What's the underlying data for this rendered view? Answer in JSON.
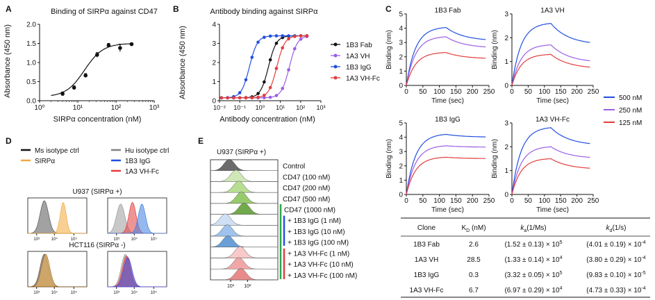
{
  "chart_data": [
    {
      "panel": "A",
      "type": "line",
      "title": "Binding of SIRPα against CD47",
      "xlabel": "SIRPα concentration (nM)",
      "ylabel": "Absorbance (450 nm)",
      "xscale": "log",
      "xlim": [
        1,
        1000
      ],
      "ylim": [
        0,
        2.0
      ],
      "yticks": [
        "0.0",
        "0.5",
        "1.0",
        "1.5",
        "2.0"
      ],
      "xticks": [
        "10⁰",
        "10¹",
        "10²",
        "10³"
      ],
      "points": {
        "x": [
          4,
          8,
          16,
          32,
          64,
          128,
          256
        ],
        "y": [
          0.18,
          0.34,
          0.66,
          1.2,
          1.45,
          1.38,
          1.48
        ],
        "err": [
          0.05,
          0.05,
          0.05,
          0.06,
          0.05,
          0.1,
          0.03
        ]
      },
      "fit": {
        "bottom": 0.1,
        "top": 1.5,
        "ec50": 15,
        "hill": 1.8
      }
    },
    {
      "panel": "B",
      "type": "line",
      "title": "Antibody binding against SIRPα",
      "xlabel": "Antibody concentration (nM)",
      "ylabel": "Absorbance (450 nm)",
      "xscale": "log",
      "xlim": [
        0.01,
        1000
      ],
      "ylim": [
        0,
        4
      ],
      "yticks": [
        "0",
        "1",
        "2",
        "3",
        "4"
      ],
      "xticks": [
        "10⁻²",
        "10⁻¹",
        "10⁰",
        "10¹",
        "10²",
        "10³"
      ],
      "series": [
        {
          "name": "1B3 Fab",
          "color": "#111111",
          "ec50": 2.6
        },
        {
          "name": "1A3 VH",
          "color": "#9b5de5",
          "ec50": 28
        },
        {
          "name": "1B3 IgG",
          "color": "#1f4fe0",
          "ec50": 0.3
        },
        {
          "name": "1A3 VH-Fc",
          "color": "#e23c3c",
          "ec50": 6.7
        }
      ],
      "x_points": [
        0.0125,
        0.025,
        0.05,
        0.1,
        0.2,
        0.4,
        0.8,
        1.6,
        3.2,
        6.4,
        12.8,
        25.6,
        51.2,
        102.4,
        204.8
      ],
      "bottom": 0.15,
      "top": 3.4
    },
    {
      "panel": "C",
      "type": "line",
      "xlabel": "Time (sec)",
      "ylabel": "Binding (nm)",
      "xlim": [
        0,
        250
      ],
      "legend": [
        "500 nM",
        "250 nM",
        "125 nM"
      ],
      "legend_colors": [
        "#1f4fe0",
        "#9b5de5",
        "#e23c3c"
      ],
      "subplots": [
        {
          "title": "1B3 Fab",
          "ylim": [
            0,
            5
          ],
          "peaks": [
            4.05,
            3.4,
            2.3
          ],
          "ends": [
            3.1,
            2.6,
            1.85
          ]
        },
        {
          "title": "1A3 VH",
          "ylim": [
            0,
            3
          ],
          "peaks": [
            2.6,
            1.7,
            1.3
          ],
          "ends": [
            1.7,
            0.95,
            0.7
          ]
        },
        {
          "title": "1B3 IgG",
          "ylim": [
            0,
            5
          ],
          "peaks": [
            4.2,
            3.4,
            2.6
          ],
          "ends": [
            4.0,
            3.3,
            2.5
          ]
        },
        {
          "title": "1A3 VH-Fc",
          "ylim": [
            0,
            3
          ],
          "peaks": [
            2.8,
            2.0,
            1.5
          ],
          "ends": [
            2.05,
            1.5,
            1.05
          ]
        }
      ],
      "yticks_5": [
        "0",
        "1",
        "2",
        "3",
        "4",
        "5"
      ],
      "yticks_3": [
        "0",
        "1",
        "2",
        "3"
      ],
      "xticks": [
        "0",
        "50",
        "100",
        "150",
        "200",
        "250"
      ]
    },
    {
      "panel": "C-table",
      "type": "table",
      "columns": [
        "Clone",
        "K",
        "k",
        "k"
      ],
      "column_subscripts": [
        "",
        "D",
        "a",
        "d"
      ],
      "column_units": [
        "",
        " (nM)",
        "(1/Ms)",
        "(1/s)"
      ],
      "rows": [
        [
          "1B3 Fab",
          "2.6",
          "(1.52 ± 0.13) × 10",
          "5",
          "(4.01 ± 0.19) × 10",
          "-4"
        ],
        [
          "1A3 VH",
          "28.5",
          "(1.33 ± 0.14) × 10",
          "4",
          "(3.80 ± 0.29) × 10",
          "-4"
        ],
        [
          "1B3 IgG",
          "0.3",
          "(3.32 ± 0.05) × 10",
          "5",
          "(9.83 ± 0.10) × 10",
          "-5"
        ],
        [
          "1A3 VH-Fc",
          "6.7",
          "(6.97 ± 0.29) × 10",
          "4",
          "(4.73 ± 0.33) × 10",
          "-4"
        ]
      ]
    }
  ],
  "panel_d": {
    "legend": [
      {
        "label": "Ms isotype ctrl",
        "color": "#111111"
      },
      {
        "label": "Hu isotype ctrl",
        "color": "#808080"
      },
      {
        "label": "SIRPα",
        "color": "#f2a93b"
      },
      {
        "label": "1B3 IgG",
        "color": "#1f4fe0"
      },
      {
        "label": "1A3 VH-Fc",
        "color": "#e23c3c"
      }
    ],
    "cell_top": "U937 (SIRPα +)",
    "cell_bottom": "HCT116 (SIRPα -)",
    "ticks": [
      "10³",
      "10⁴",
      "10⁵"
    ]
  },
  "panel_e": {
    "title": "U937 (SIRPα +)",
    "labels": [
      "Control",
      "CD47 (100 nM)",
      "CD47 (200 nM)",
      "CD47 (500 nM)",
      "CD47 (1000 nM)",
      "+ 1B3 IgG (1 nM)",
      "+ 1B3 IgG (10 nM)",
      "+ 1B3 IgG (100 nM)",
      "+ 1A3 VH-Fc (1 nM)",
      "+ 1A3 VH-Fc (10 nM)",
      "+ 1A3 VH-Fc (100 nM)"
    ],
    "colors": [
      "#6b6b6b",
      "#cfe8b6",
      "#b7de93",
      "#97ca6c",
      "#72a94c",
      "#cfe0f5",
      "#9fc3ec",
      "#6a9fd8",
      "#f7c9c9",
      "#f1a7a7",
      "#e98b8b"
    ],
    "ticks": [
      "10¹",
      "10²"
    ]
  },
  "panel_labels": [
    "A",
    "B",
    "C",
    "D",
    "E"
  ]
}
